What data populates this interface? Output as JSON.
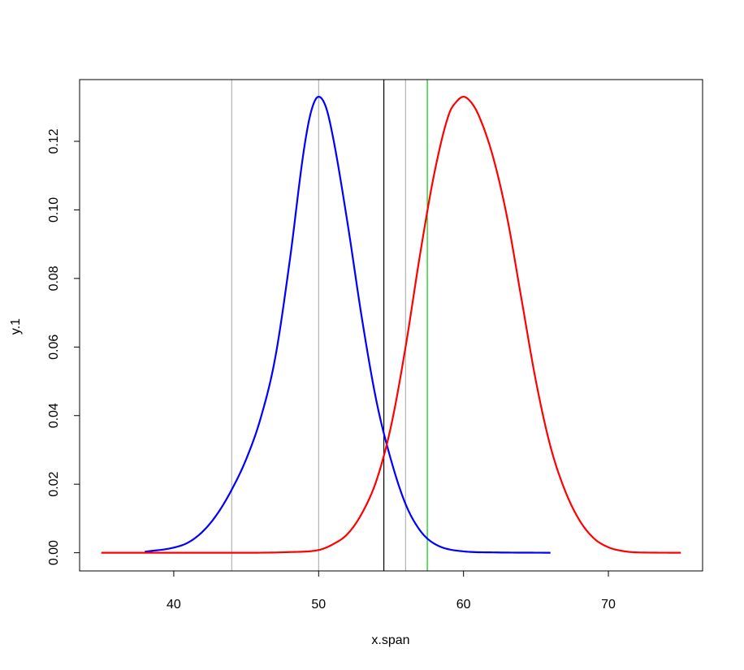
{
  "chart_data": {
    "type": "line",
    "title": "",
    "xlabel": "x.span",
    "ylabel": "y.1",
    "xlim": [
      33.5,
      76.5
    ],
    "ylim": [
      -0.0053,
      0.138
    ],
    "x_ticks": [
      40,
      50,
      60,
      70
    ],
    "x_tick_labels": [
      "40",
      "50",
      "60",
      "70"
    ],
    "y_ticks": [
      0.0,
      0.02,
      0.04,
      0.06,
      0.08,
      0.1,
      0.12
    ],
    "y_tick_labels": [
      "0.00",
      "0.02",
      "0.04",
      "0.06",
      "0.08",
      "0.10",
      "0.12"
    ],
    "grid": false,
    "series": [
      {
        "color": "#0000ff",
        "points": [
          [
            38,
            0.0003
          ],
          [
            40,
            0.0015
          ],
          [
            41,
            0.003
          ],
          [
            42,
            0.0062
          ],
          [
            43,
            0.0113
          ],
          [
            44,
            0.0184
          ],
          [
            45,
            0.0273
          ],
          [
            46,
            0.0393
          ],
          [
            47,
            0.0568
          ],
          [
            48,
            0.085
          ],
          [
            49,
            0.118
          ],
          [
            49.5,
            0.129
          ],
          [
            50,
            0.133
          ],
          [
            50.5,
            0.13
          ],
          [
            51,
            0.121
          ],
          [
            52,
            0.096
          ],
          [
            53,
            0.068
          ],
          [
            54,
            0.044
          ],
          [
            55,
            0.027
          ],
          [
            56,
            0.0142
          ],
          [
            57,
            0.0065
          ],
          [
            58,
            0.0026
          ],
          [
            60,
            0.0004
          ],
          [
            62,
            0.0001
          ],
          [
            66,
            0.0
          ]
        ]
      },
      {
        "color": "#ff0000",
        "points": [
          [
            35,
            0.0
          ],
          [
            40,
            0.0
          ],
          [
            45,
            0.0
          ],
          [
            48,
            0.0002
          ],
          [
            50,
            0.0008
          ],
          [
            51,
            0.0025
          ],
          [
            52,
            0.0055
          ],
          [
            53,
            0.0116
          ],
          [
            54,
            0.0212
          ],
          [
            55,
            0.037
          ],
          [
            56,
            0.06
          ],
          [
            57,
            0.087
          ],
          [
            58,
            0.111
          ],
          [
            59,
            0.128
          ],
          [
            59.5,
            0.1315
          ],
          [
            60,
            0.133
          ],
          [
            60.5,
            0.1315
          ],
          [
            61,
            0.128
          ],
          [
            62,
            0.116
          ],
          [
            63,
            0.098
          ],
          [
            64,
            0.074
          ],
          [
            65,
            0.05
          ],
          [
            66,
            0.031
          ],
          [
            67,
            0.0182
          ],
          [
            68,
            0.0095
          ],
          [
            69,
            0.0042
          ],
          [
            70,
            0.0016
          ],
          [
            71,
            0.0005
          ],
          [
            72,
            0.0001
          ],
          [
            75,
            0.0
          ]
        ]
      }
    ],
    "vertical_lines": [
      {
        "x": 44,
        "color": "#b3b3b3"
      },
      {
        "x": 50,
        "color": "#b3b3b3"
      },
      {
        "x": 54.5,
        "color": "#000000"
      },
      {
        "x": 56,
        "color": "#b3b3b3"
      },
      {
        "x": 57.5,
        "color": "#00cc00"
      }
    ]
  }
}
